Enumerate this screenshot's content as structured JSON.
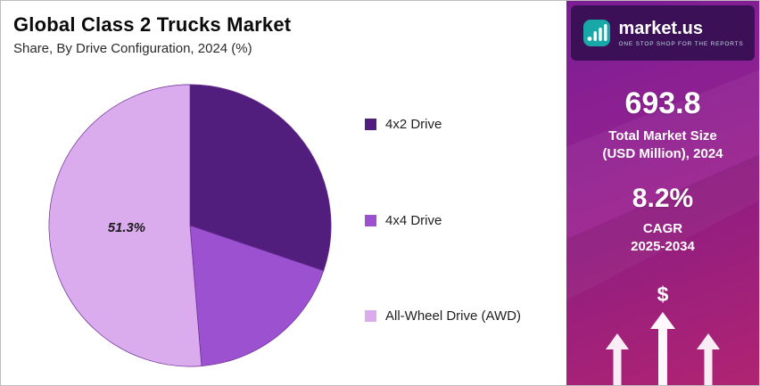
{
  "header": {
    "title": "Global Class 2 Trucks Market",
    "subtitle": "Share, By Drive Configuration, 2024 (%)"
  },
  "chart_data": {
    "type": "pie",
    "title": "Global Class 2 Trucks Market",
    "subtitle": "Share, By Drive Configuration, 2024 (%)",
    "unit": "%",
    "labels": [
      "4x2 Drive",
      "4x4 Drive",
      "All-Wheel Drive (AWD)"
    ],
    "values": [
      30.2,
      18.5,
      51.3
    ],
    "colors": [
      "#511E7E",
      "#9C52D0",
      "#DAACEE"
    ],
    "start_angle": "top",
    "direction": "clockwise",
    "legend_position": "right",
    "annotations": [
      {
        "slice": "All-Wheel Drive (AWD)",
        "text": "51.3%"
      }
    ]
  },
  "legend": {
    "items": [
      {
        "label": "4x2 Drive",
        "color": "#511E7E"
      },
      {
        "label": "4x4 Drive",
        "color": "#9C52D0"
      },
      {
        "label": "All-Wheel Drive (AWD)",
        "color": "#DAACEE"
      }
    ]
  },
  "sidebar": {
    "logo": {
      "brand": "market.us",
      "tagline": "ONE STOP SHOP FOR THE REPORTS",
      "icon": "marketus-bars-logo",
      "icon_color": "#18A8A8"
    },
    "market_size": {
      "value": "693.8",
      "label_line1": "Total Market Size",
      "label_line2": "(USD Million), 2024"
    },
    "cagr": {
      "value": "8.2%",
      "label_line1": "CAGR",
      "label_line2": "2025-2034"
    },
    "dollar": "$",
    "colors": {
      "panel_gradient_start": "#7A1E95",
      "panel_gradient_end": "#C42A7A",
      "logo_box": "#3C1056",
      "logo_icon": "#18A8A8"
    }
  }
}
